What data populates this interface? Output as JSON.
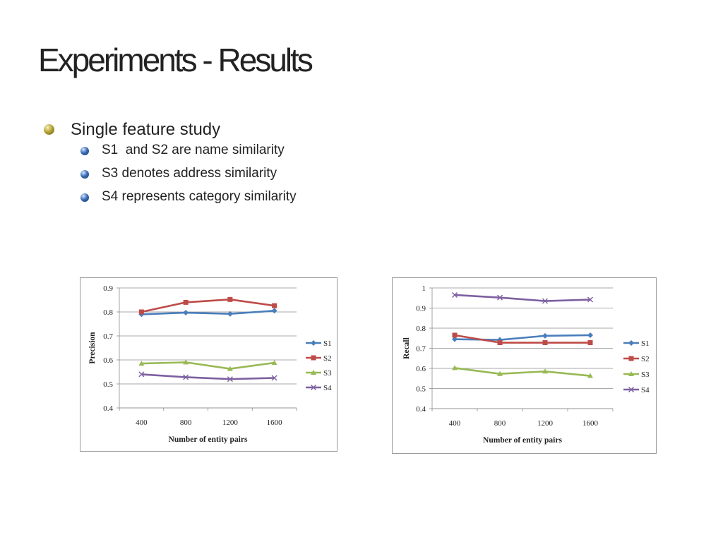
{
  "slide": {
    "title": "Experiments - Results",
    "bullets": [
      {
        "text": "Single feature study",
        "level": 1
      },
      {
        "text": "S1  and S2 are name similarity",
        "level": 2
      },
      {
        "text": "S3 denotes address similarity",
        "level": 2
      },
      {
        "text": "S4 represents category similarity",
        "level": 2
      }
    ]
  },
  "chart_data": [
    {
      "type": "line",
      "title": "",
      "xlabel": "Number of  entity pairs",
      "ylabel": "Precision",
      "categories": [
        "400",
        "800",
        "1200",
        "1600"
      ],
      "ylim": [
        0.4,
        0.9
      ],
      "yticks": [
        0.9,
        0.8,
        0.7,
        0.6,
        0.5,
        0.4
      ],
      "ytick_labels": [
        "0.9",
        "0.8",
        "0.7",
        "0.6",
        "0.5",
        "0.4"
      ],
      "grid": true,
      "legend": "right",
      "series": [
        {
          "name": "S1",
          "values": [
            0.79,
            0.797,
            0.792,
            0.805
          ],
          "color": "#4a7ebb",
          "marker": "diamond"
        },
        {
          "name": "S2",
          "values": [
            0.8,
            0.84,
            0.852,
            0.826
          ],
          "color": "#be4b48",
          "marker": "square"
        },
        {
          "name": "S3",
          "values": [
            0.585,
            0.59,
            0.563,
            0.588
          ],
          "color": "#98b954",
          "marker": "triangle"
        },
        {
          "name": "S4",
          "values": [
            0.54,
            0.528,
            0.52,
            0.525
          ],
          "color": "#7d60a0",
          "marker": "x"
        }
      ]
    },
    {
      "type": "line",
      "title": "",
      "xlabel": "Number of entity pairs",
      "ylabel": "Recall",
      "categories": [
        "400",
        "800",
        "1200",
        "1600"
      ],
      "ylim": [
        0.4,
        1.0
      ],
      "yticks": [
        1.0,
        0.9,
        0.8,
        0.7,
        0.6,
        0.5,
        0.4
      ],
      "ytick_labels": [
        "1",
        "0.9",
        "0.8",
        "0.7",
        "0.6",
        "0.5",
        "0.4"
      ],
      "grid": true,
      "legend": "right",
      "series": [
        {
          "name": "S1",
          "values": [
            0.745,
            0.742,
            0.762,
            0.765
          ],
          "color": "#4a7ebb",
          "marker": "diamond"
        },
        {
          "name": "S2",
          "values": [
            0.765,
            0.728,
            0.728,
            0.728
          ],
          "color": "#be4b48",
          "marker": "square"
        },
        {
          "name": "S3",
          "values": [
            0.602,
            0.573,
            0.585,
            0.563
          ],
          "color": "#98b954",
          "marker": "triangle"
        },
        {
          "name": "S4",
          "values": [
            0.965,
            0.952,
            0.935,
            0.942
          ],
          "color": "#7d60a0",
          "marker": "x"
        }
      ]
    }
  ]
}
